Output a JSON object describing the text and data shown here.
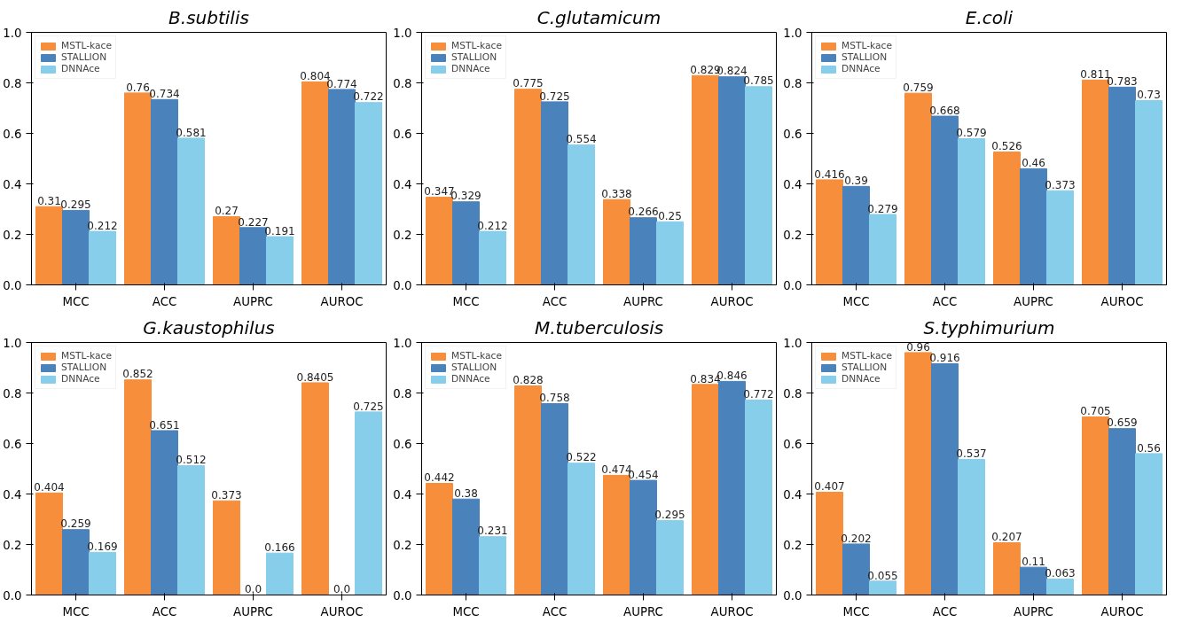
{
  "chart_data": [
    {
      "type": "bar",
      "title": "B.subtilis",
      "categories": [
        "MCC",
        "ACC",
        "AUPRC",
        "AUROC"
      ],
      "ylim": [
        0,
        1
      ],
      "yticks": [
        {
          "value": 0,
          "label": "0.0"
        },
        {
          "value": 0.2,
          "label": "0.2"
        },
        {
          "value": 0.4,
          "label": "0.4"
        },
        {
          "value": 0.6,
          "label": "0.6"
        },
        {
          "value": 0.8,
          "label": "0.8"
        },
        {
          "value": 1,
          "label": "1.0"
        }
      ],
      "legend": "top left",
      "grid": false,
      "series": [
        {
          "name": "MSTL-kace",
          "color": "#f68e3c",
          "values": [
            0.31,
            0.76,
            0.27,
            0.804
          ],
          "value_labels": [
            "0.31",
            "0.76",
            "0.27",
            "0.804"
          ]
        },
        {
          "name": "STALLION",
          "color": "#4a82bc",
          "values": [
            0.295,
            0.734,
            0.227,
            0.774
          ],
          "value_labels": [
            "0.295",
            "0.734",
            "0.227",
            "0.774"
          ]
        },
        {
          "name": "DNNAce",
          "color": "#87ceeb",
          "values": [
            0.212,
            0.581,
            0.191,
            0.722
          ],
          "value_labels": [
            "0.212",
            "0.581",
            "0.191",
            "0.722"
          ]
        }
      ]
    },
    {
      "type": "bar",
      "title": "C.glutamicum",
      "categories": [
        "MCC",
        "ACC",
        "AUPRC",
        "AUROC"
      ],
      "ylim": [
        0,
        1
      ],
      "yticks": [
        {
          "value": 0,
          "label": "0.0"
        },
        {
          "value": 0.2,
          "label": "0.2"
        },
        {
          "value": 0.4,
          "label": "0.4"
        },
        {
          "value": 0.6,
          "label": "0.6"
        },
        {
          "value": 0.8,
          "label": "0.8"
        },
        {
          "value": 1,
          "label": "1.0"
        }
      ],
      "legend": "top left",
      "grid": false,
      "series": [
        {
          "name": "MSTL-kace",
          "color": "#f68e3c",
          "values": [
            0.347,
            0.775,
            0.338,
            0.829
          ],
          "value_labels": [
            "0.347",
            "0.775",
            "0.338",
            "0.829"
          ]
        },
        {
          "name": "STALLION",
          "color": "#4a82bc",
          "values": [
            0.329,
            0.725,
            0.266,
            0.824
          ],
          "value_labels": [
            "0.329",
            "0.725",
            "0.266",
            "0.824"
          ]
        },
        {
          "name": "DNNAce",
          "color": "#87ceeb",
          "values": [
            0.212,
            0.554,
            0.25,
            0.785
          ],
          "value_labels": [
            "0.212",
            "0.554",
            "0.25",
            "0.785"
          ]
        }
      ]
    },
    {
      "type": "bar",
      "title": "E.coli",
      "categories": [
        "MCC",
        "ACC",
        "AUPRC",
        "AUROC"
      ],
      "ylim": [
        0,
        1
      ],
      "yticks": [
        {
          "value": 0,
          "label": "0.0"
        },
        {
          "value": 0.2,
          "label": "0.2"
        },
        {
          "value": 0.4,
          "label": "0.4"
        },
        {
          "value": 0.6,
          "label": "0.6"
        },
        {
          "value": 0.8,
          "label": "0.8"
        },
        {
          "value": 1,
          "label": "1.0"
        }
      ],
      "legend": "top left",
      "grid": false,
      "series": [
        {
          "name": "MSTL-kace",
          "color": "#f68e3c",
          "values": [
            0.416,
            0.759,
            0.526,
            0.811
          ],
          "value_labels": [
            "0.416",
            "0.759",
            "0.526",
            "0.811"
          ]
        },
        {
          "name": "STALLION",
          "color": "#4a82bc",
          "values": [
            0.39,
            0.668,
            0.46,
            0.783
          ],
          "value_labels": [
            "0.39",
            "0.668",
            "0.46",
            "0.783"
          ]
        },
        {
          "name": "DNNAce",
          "color": "#87ceeb",
          "values": [
            0.279,
            0.579,
            0.373,
            0.73
          ],
          "value_labels": [
            "0.279",
            "0.579",
            "0.373",
            "0.73"
          ]
        }
      ]
    },
    {
      "type": "bar",
      "title": "G.kaustophilus",
      "categories": [
        "MCC",
        "ACC",
        "AUPRC",
        "AUROC"
      ],
      "ylim": [
        0,
        1
      ],
      "yticks": [
        {
          "value": 0,
          "label": "0.0"
        },
        {
          "value": 0.2,
          "label": "0.2"
        },
        {
          "value": 0.4,
          "label": "0.4"
        },
        {
          "value": 0.6,
          "label": "0.6"
        },
        {
          "value": 0.8,
          "label": "0.8"
        },
        {
          "value": 1,
          "label": "1.0"
        }
      ],
      "legend": "top left",
      "grid": false,
      "series": [
        {
          "name": "MSTL-kace",
          "color": "#f68e3c",
          "values": [
            0.404,
            0.852,
            0.373,
            0.8405
          ],
          "value_labels": [
            "0.404",
            "0.852",
            "0.373",
            "0.8405"
          ]
        },
        {
          "name": "STALLION",
          "color": "#4a82bc",
          "values": [
            0.259,
            0.651,
            0.0,
            0.0
          ],
          "value_labels": [
            "0.259",
            "0.651",
            "0.0",
            "0.0"
          ]
        },
        {
          "name": "DNNAce",
          "color": "#87ceeb",
          "values": [
            0.169,
            0.512,
            0.166,
            0.725
          ],
          "value_labels": [
            "0.169",
            "0.512",
            "0.166",
            "0.725"
          ]
        }
      ]
    },
    {
      "type": "bar",
      "title": "M.tuberculosis",
      "categories": [
        "MCC",
        "ACC",
        "AUPRC",
        "AUROC"
      ],
      "ylim": [
        0,
        1
      ],
      "yticks": [
        {
          "value": 0,
          "label": "0.0"
        },
        {
          "value": 0.2,
          "label": "0.2"
        },
        {
          "value": 0.4,
          "label": "0.4"
        },
        {
          "value": 0.6,
          "label": "0.6"
        },
        {
          "value": 0.8,
          "label": "0.8"
        },
        {
          "value": 1,
          "label": "1.0"
        }
      ],
      "legend": "top left",
      "grid": false,
      "series": [
        {
          "name": "MSTL-kace",
          "color": "#f68e3c",
          "values": [
            0.442,
            0.828,
            0.474,
            0.834
          ],
          "value_labels": [
            "0.442",
            "0.828",
            "0.474",
            "0.834"
          ]
        },
        {
          "name": "STALLION",
          "color": "#4a82bc",
          "values": [
            0.38,
            0.758,
            0.454,
            0.846
          ],
          "value_labels": [
            "0.38",
            "0.758",
            "0.454",
            "0.846"
          ]
        },
        {
          "name": "DNNAce",
          "color": "#87ceeb",
          "values": [
            0.231,
            0.522,
            0.295,
            0.772
          ],
          "value_labels": [
            "0.231",
            "0.522",
            "0.295",
            "0.772"
          ]
        }
      ]
    },
    {
      "type": "bar",
      "title": "S.typhimurium",
      "categories": [
        "MCC",
        "ACC",
        "AUPRC",
        "AUROC"
      ],
      "ylim": [
        0,
        1
      ],
      "yticks": [
        {
          "value": 0,
          "label": "0.0"
        },
        {
          "value": 0.2,
          "label": "0.2"
        },
        {
          "value": 0.4,
          "label": "0.4"
        },
        {
          "value": 0.6,
          "label": "0.6"
        },
        {
          "value": 0.8,
          "label": "0.8"
        },
        {
          "value": 1,
          "label": "1.0"
        }
      ],
      "legend": "top left",
      "grid": false,
      "series": [
        {
          "name": "MSTL-kace",
          "color": "#f68e3c",
          "values": [
            0.407,
            0.96,
            0.207,
            0.705
          ],
          "value_labels": [
            "0.407",
            "0.96",
            "0.207",
            "0.705"
          ]
        },
        {
          "name": "STALLION",
          "color": "#4a82bc",
          "values": [
            0.202,
            0.916,
            0.11,
            0.659
          ],
          "value_labels": [
            "0.202",
            "0.916",
            "0.11",
            "0.659"
          ]
        },
        {
          "name": "DNNAce",
          "color": "#87ceeb",
          "values": [
            0.055,
            0.537,
            0.063,
            0.56
          ],
          "value_labels": [
            "0.055",
            "0.537",
            "0.063",
            "0.56"
          ]
        }
      ]
    }
  ]
}
